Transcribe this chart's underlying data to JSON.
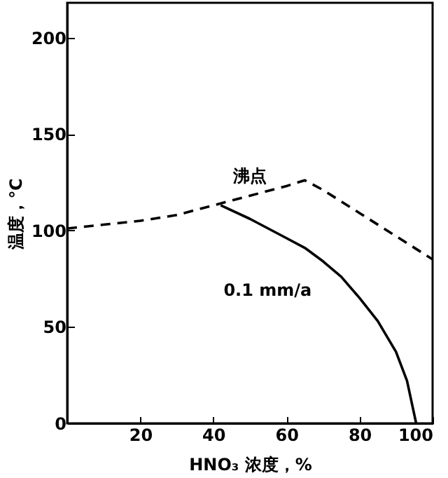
{
  "chart_data": {
    "type": "line",
    "xlabel": "HNO₃ 浓度，%",
    "ylabel": "温度，℃",
    "xlim": [
      0,
      100
    ],
    "xticks": [
      20,
      40,
      60,
      80,
      100
    ],
    "ylim": [
      0,
      218
    ],
    "yticks": [
      0,
      50,
      100,
      150,
      200
    ],
    "grid": false,
    "marker": "none",
    "series": [
      {
        "name": "沸点",
        "color": "#000000",
        "line_style": "dashed",
        "x": [
          0,
          10,
          20,
          30,
          40,
          50,
          60,
          65,
          70,
          80,
          90,
          100
        ],
        "values": [
          101,
          103,
          105,
          108,
          113,
          118,
          123,
          126,
          121,
          109,
          97,
          85
        ]
      },
      {
        "name": "0.1 mm/a",
        "color": "#000000",
        "line_style": "solid",
        "x": [
          42,
          50,
          60,
          65,
          70,
          75,
          80,
          85,
          90,
          93,
          95.5
        ],
        "values": [
          113,
          106,
          96,
          91,
          84,
          76,
          65,
          53,
          37,
          22,
          0
        ]
      }
    ]
  }
}
